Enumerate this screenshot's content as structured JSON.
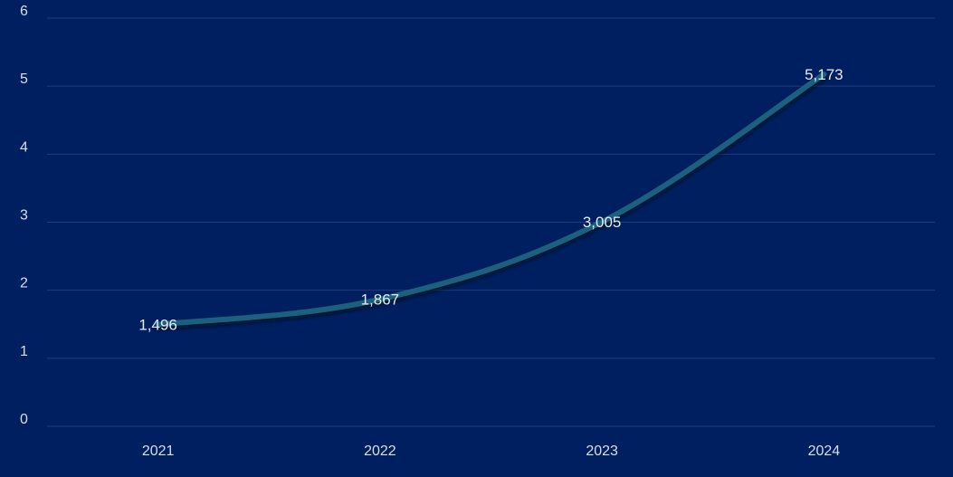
{
  "chart_data": {
    "type": "line",
    "categories": [
      "2021",
      "2022",
      "2023",
      "2024"
    ],
    "values": [
      1.496,
      1.867,
      3.005,
      5.173
    ],
    "data_labels": [
      "1,496",
      "1,867",
      "3,005",
      "5,173"
    ],
    "y_ticks": [
      "0",
      "1",
      "2",
      "3",
      "4",
      "5",
      "6"
    ],
    "ylim": [
      0,
      6
    ],
    "grid": true,
    "line_color": "#1a5f7e",
    "background": "#001f60",
    "gridline_color": "#1f3d7a"
  }
}
